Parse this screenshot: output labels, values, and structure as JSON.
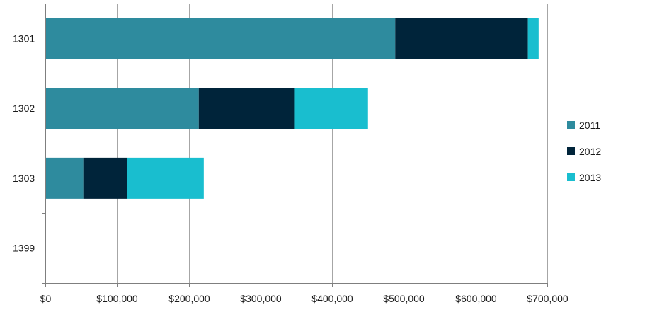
{
  "chart_data": {
    "type": "bar",
    "orientation": "horizontal",
    "stacked": true,
    "categories": [
      "1301",
      "1302",
      "1303",
      "1399"
    ],
    "series": [
      {
        "name": "2011",
        "color": "#2e8b9e",
        "values": [
          488000,
          214000,
          53000,
          0
        ]
      },
      {
        "name": "2012",
        "color": "#00243a",
        "values": [
          185000,
          133000,
          61000,
          0
        ]
      },
      {
        "name": "2013",
        "color": "#19becf",
        "values": [
          15000,
          103000,
          107000,
          0
        ]
      }
    ],
    "xlim": [
      0,
      700000
    ],
    "x_ticks": [
      0,
      100000,
      200000,
      300000,
      400000,
      500000,
      600000,
      700000
    ],
    "x_tick_labels": [
      "$0",
      "$100,000",
      "$200,000",
      "$300,000",
      "$400,000",
      "$500,000",
      "$600,000",
      "$700,000"
    ],
    "grid": "vertical",
    "legend_position": "right",
    "title": "",
    "xlabel": "",
    "ylabel": ""
  }
}
